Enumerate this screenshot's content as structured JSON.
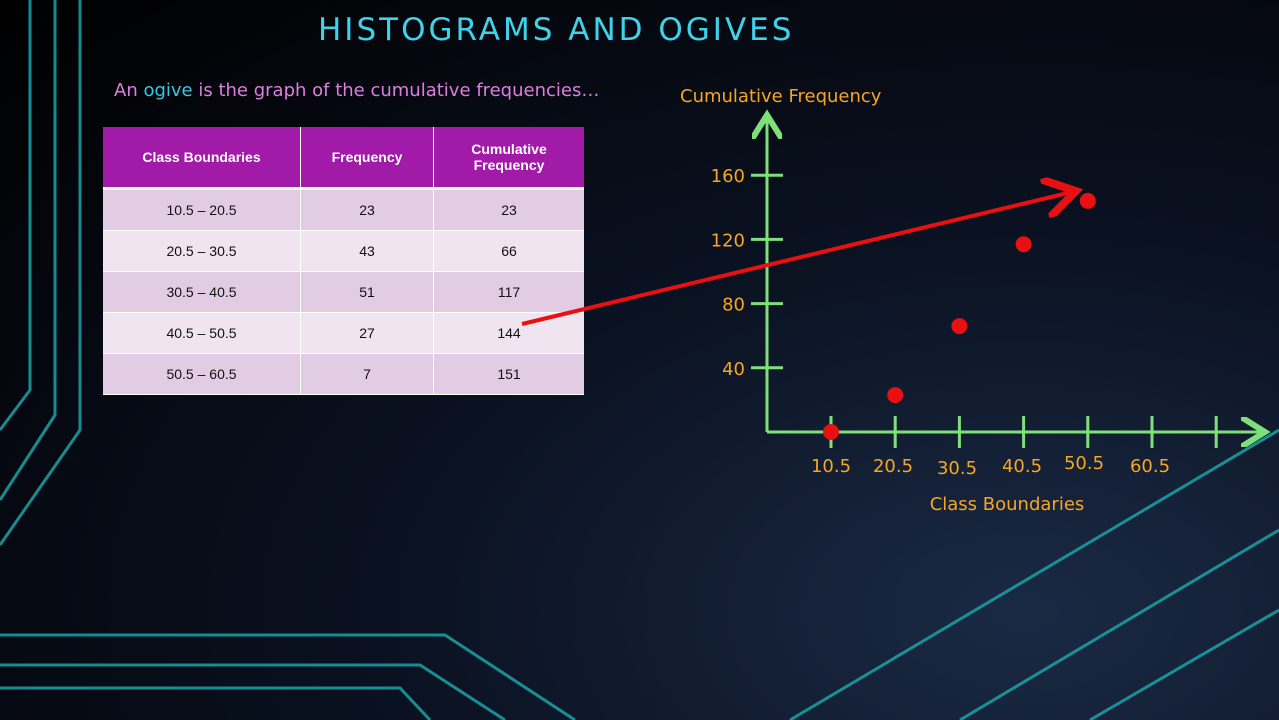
{
  "slide": {
    "title": "HISTOGRAMS AND OGIVES",
    "subtitle_prefix": "An ",
    "subtitle_highlight": "ogive",
    "subtitle_suffix": " is the graph of the cumulative frequencies…"
  },
  "table": {
    "headers": [
      "Class Boundaries",
      "Frequency",
      "Cumulative Frequency"
    ],
    "rows": [
      [
        "10.5 – 20.5",
        "23",
        "23"
      ],
      [
        "20.5 – 30.5",
        "43",
        "66"
      ],
      [
        "30.5 – 40.5",
        "51",
        "117"
      ],
      [
        "40.5 – 50.5",
        "27",
        "144"
      ],
      [
        "50.5 – 60.5",
        "7",
        "151"
      ]
    ]
  },
  "chart_data": {
    "type": "scatter",
    "ylabel": "Cumulative Frequency",
    "xlabel": "Class Boundaries",
    "x_ticks": [
      "10.5",
      "20.5",
      "30.5",
      "40.5",
      "50.5",
      "60.5"
    ],
    "y_ticks": [
      "40",
      "80",
      "120",
      "160"
    ],
    "xlim": [
      10.5,
      70.5
    ],
    "ylim": [
      0,
      170
    ],
    "points": [
      {
        "x": 10.5,
        "y": 0
      },
      {
        "x": 20.5,
        "y": 23
      },
      {
        "x": 30.5,
        "y": 66
      },
      {
        "x": 40.5,
        "y": 117
      },
      {
        "x": 50.5,
        "y": 144
      }
    ],
    "colors": {
      "axis": "#7fe07a",
      "label": "#f5a623",
      "point": "#e81010",
      "arrow": "#e81010"
    }
  }
}
